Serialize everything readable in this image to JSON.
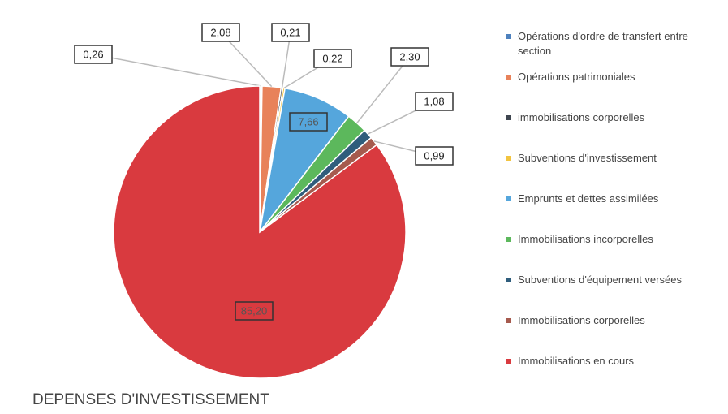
{
  "chart_data": {
    "type": "pie",
    "title": "DEPENSES D'INVESTISSEMENT",
    "categories": [
      "Opérations d'ordre de transfert entre section",
      "Opérations patrimoniales",
      "immobilisations corporelles",
      "Subventions d'investissement",
      "Emprunts et dettes assimilées",
      "Immobilisations incorporelles",
      "Subventions d'équipement versées",
      "Immobilisations corporelles",
      "Immobilisations en cours"
    ],
    "values": [
      0.26,
      2.08,
      0.21,
      0.22,
      7.66,
      2.3,
      1.08,
      0.99,
      85.2
    ],
    "value_labels": [
      "0,26",
      "2,08",
      "0,21",
      "0,22",
      "7,66",
      "2,30",
      "1,08",
      "0,99",
      "85,20"
    ],
    "colors": [
      "#dfe3ea",
      "#e8825a",
      "#3f4650",
      "#f2c440",
      "#55a6dc",
      "#5cb85c",
      "#2f5d7c",
      "#a65a4e",
      "#d93a3f"
    ],
    "legend": "right"
  }
}
